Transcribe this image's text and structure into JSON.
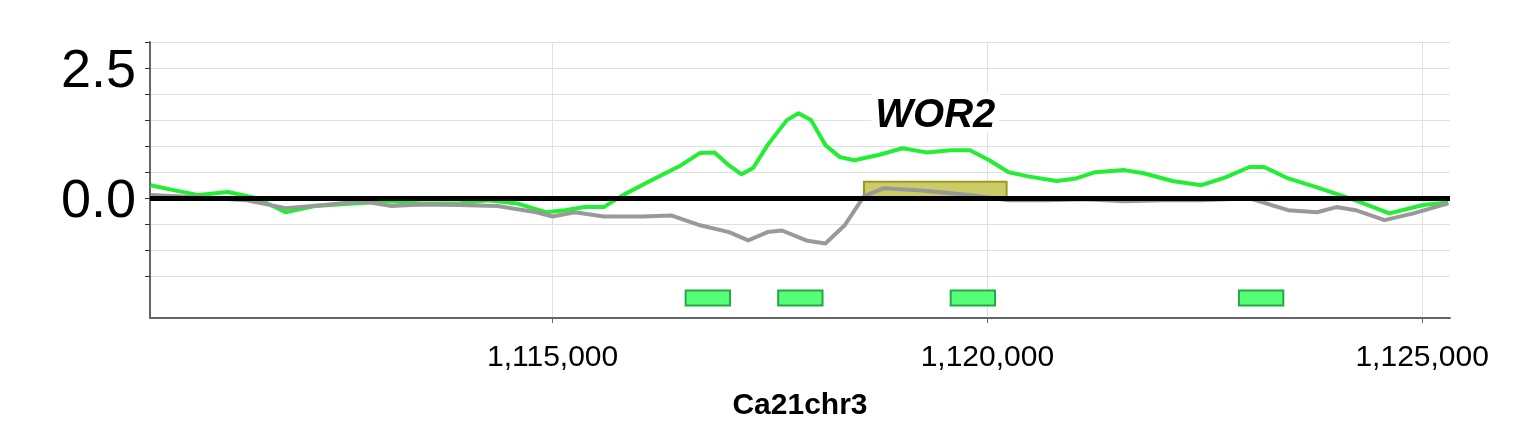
{
  "chart_data": {
    "type": "line",
    "xlabel": "Ca21chr3",
    "xlim": [
      1110370,
      1125320
    ],
    "xticks": [
      {
        "value": 1115000,
        "label": "1,115,000"
      },
      {
        "value": 1120000,
        "label": "1,120,000"
      },
      {
        "value": 1125000,
        "label": "1,125,000"
      }
    ],
    "ylim": [
      -2.3,
      3.0
    ],
    "yticks": [
      {
        "value": -1.5,
        "label": null
      },
      {
        "value": -1.0,
        "label": null
      },
      {
        "value": -0.5,
        "label": null
      },
      {
        "value": 0,
        "label": "0.0"
      },
      {
        "value": 0.5,
        "label": null
      },
      {
        "value": 1.0,
        "label": null
      },
      {
        "value": 1.5,
        "label": null
      },
      {
        "value": 2.0,
        "label": null
      },
      {
        "value": 2.5,
        "label": "2.5"
      },
      {
        "value": 3.0,
        "label": null
      }
    ],
    "grid": true,
    "marker": "none",
    "line_style": "solid",
    "series": [
      {
        "color": "#22ee33",
        "x": [
          1110377,
          1110654,
          1110931,
          1111264,
          1111597,
          1111929,
          1112262,
          1112705,
          1113149,
          1113481,
          1113925,
          1114257,
          1114590,
          1114922,
          1115144,
          1115366,
          1115588,
          1115809,
          1116142,
          1116474,
          1116696,
          1116862,
          1117029,
          1117173,
          1117306,
          1117472,
          1117694,
          1117827,
          1117971,
          1118137,
          1118304,
          1118470,
          1118747,
          1119024,
          1119301,
          1119579,
          1119800,
          1120022,
          1120244,
          1120465,
          1120798,
          1121020,
          1121241,
          1121574,
          1121796,
          1122128,
          1122461,
          1122738,
          1123015,
          1123181,
          1123459,
          1123791,
          1124235,
          1124623,
          1125011,
          1125300
        ],
        "values": [
          0.25,
          0.15,
          0.06,
          0.12,
          0.0,
          -0.27,
          -0.15,
          -0.1,
          -0.06,
          -0.1,
          -0.1,
          -0.04,
          -0.1,
          -0.27,
          -0.23,
          -0.17,
          -0.17,
          0.06,
          0.35,
          0.63,
          0.87,
          0.88,
          0.63,
          0.46,
          0.58,
          1.02,
          1.5,
          1.63,
          1.5,
          1.02,
          0.79,
          0.73,
          0.83,
          0.96,
          0.88,
          0.92,
          0.92,
          0.73,
          0.5,
          0.42,
          0.33,
          0.38,
          0.5,
          0.54,
          0.48,
          0.33,
          0.25,
          0.4,
          0.6,
          0.6,
          0.38,
          0.21,
          -0.04,
          -0.29,
          -0.13,
          -0.08
        ]
      },
      {
        "color": "#999999",
        "x": [
          1110377,
          1110931,
          1111486,
          1111929,
          1112373,
          1112816,
          1113149,
          1113481,
          1113925,
          1114368,
          1114812,
          1115000,
          1115255,
          1115588,
          1116031,
          1116364,
          1116696,
          1117029,
          1117250,
          1117472,
          1117638,
          1117916,
          1118137,
          1118359,
          1118581,
          1118803,
          1119246,
          1119800,
          1120244,
          1120687,
          1121131,
          1121574,
          1122017,
          1122461,
          1123015,
          1123459,
          1123791,
          1124013,
          1124235,
          1124567,
          1124900,
          1125300
        ],
        "values": [
          0.06,
          0.02,
          -0.04,
          -0.19,
          -0.13,
          -0.06,
          -0.15,
          -0.12,
          -0.13,
          -0.15,
          -0.27,
          -0.35,
          -0.27,
          -0.35,
          -0.35,
          -0.33,
          -0.52,
          -0.65,
          -0.81,
          -0.65,
          -0.62,
          -0.81,
          -0.87,
          -0.52,
          0.04,
          0.19,
          0.15,
          0.06,
          -0.04,
          -0.04,
          -0.02,
          -0.06,
          -0.04,
          -0.04,
          0.0,
          -0.23,
          -0.27,
          -0.17,
          -0.23,
          -0.42,
          -0.29,
          -0.1
        ]
      }
    ],
    "ref_lines": [
      {
        "axis": "y",
        "value": 0,
        "label": null,
        "color": "#000000"
      }
    ],
    "bands": [
      {
        "axis": "x",
        "from": 1116530,
        "to": 1117040,
        "label": null,
        "color": "#55ff77"
      },
      {
        "axis": "x",
        "from": 1117594,
        "to": 1118104,
        "label": null,
        "color": "#55ff77"
      },
      {
        "axis": "x",
        "from": 1119578,
        "to": 1120088,
        "label": null,
        "color": "#55ff77"
      },
      {
        "axis": "x",
        "from": 1122893,
        "to": 1123403,
        "label": null,
        "color": "#55ff77"
      },
      {
        "axis": "x",
        "from": 1118581,
        "to": 1120221,
        "label": "WOR2",
        "color": "#cccc66"
      }
    ]
  }
}
